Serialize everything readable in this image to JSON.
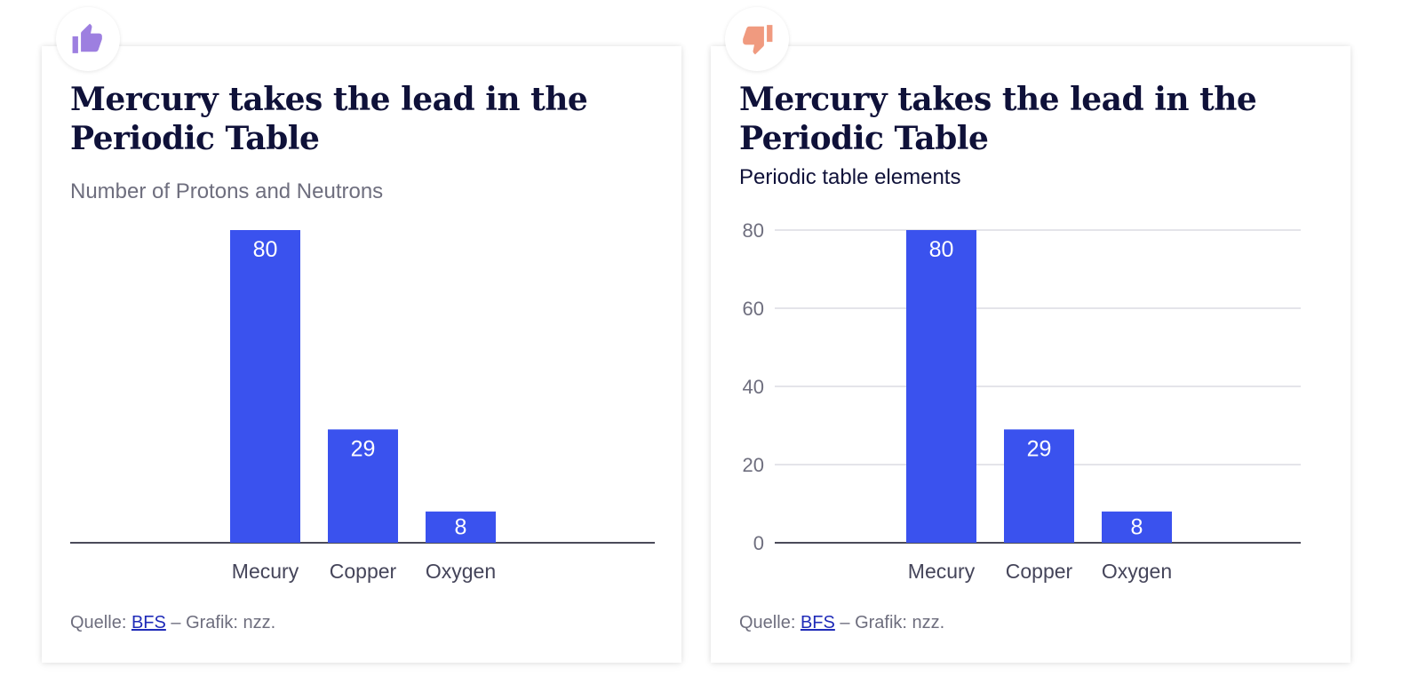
{
  "colors": {
    "bar": "#3a52ee",
    "title": "#0f1139",
    "muted": "#6e6e7e",
    "grid": "#dcdce3",
    "axis": "#4b4b5a",
    "thumbs_up": "#9d7fe0",
    "thumbs_down": "#f09a7f",
    "link": "#1f2bb8"
  },
  "left": {
    "badge_icon": "thumbs-up-icon",
    "title": "Mercury takes the lead in the Periodic Table",
    "subtitle": "Number of Protons and Neutrons",
    "source_prefix": "Quelle: ",
    "source_link": "BFS",
    "source_suffix": " – Grafik: nzz."
  },
  "right": {
    "badge_icon": "thumbs-down-icon",
    "title": "Mercury takes the lead in the Periodic Table",
    "subtitle": "Periodic table elements",
    "source_prefix": "Quelle: ",
    "source_link": "BFS",
    "source_suffix": " – Grafik: nzz."
  },
  "chart_data": [
    {
      "type": "bar",
      "title": "Mercury takes the lead in the Periodic Table",
      "subtitle": "Number of Protons and Neutrons",
      "categories": [
        "Mecury",
        "Copper",
        "Oxygen"
      ],
      "values": [
        80,
        29,
        8
      ],
      "ylim": [
        0,
        80
      ],
      "grid": false,
      "y_axis_visible": false,
      "data_labels": true
    },
    {
      "type": "bar",
      "title": "Mercury takes the lead in the Periodic Table",
      "subtitle": "Periodic table elements",
      "categories": [
        "Mecury",
        "Copper",
        "Oxygen"
      ],
      "values": [
        80,
        29,
        8
      ],
      "ylim": [
        0,
        80
      ],
      "yticks": [
        0,
        20,
        40,
        60,
        80
      ],
      "grid": true,
      "y_axis_visible": true,
      "data_labels": true
    }
  ]
}
